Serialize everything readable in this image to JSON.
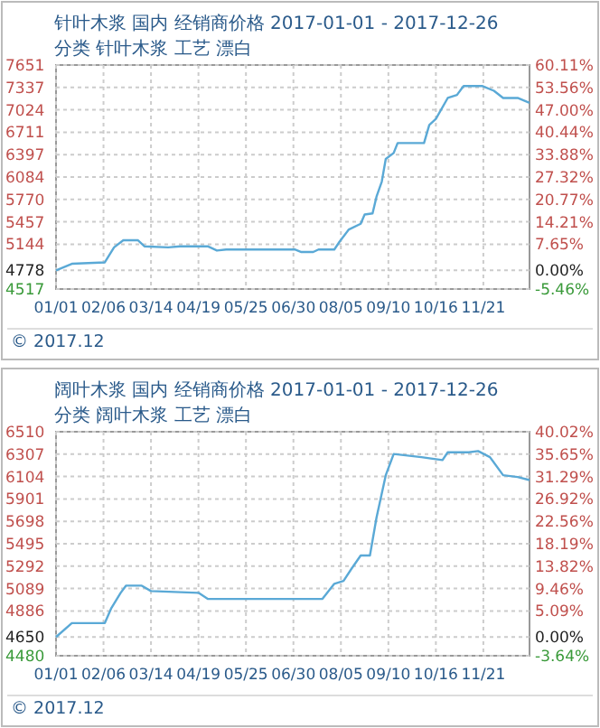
{
  "chart_data": [
    {
      "type": "line",
      "title": "针叶木浆 国内 经销商价格 2017-01-01 - 2017-12-26",
      "subtitle": "分类 针叶木浆 工艺 漂白",
      "annotations": [
        "© 2017.12"
      ],
      "series": [
        {
          "color": "#5aa9d6",
          "x": [
            "2017-01-01",
            "2017-01-13",
            "2017-02-07",
            "2017-02-14",
            "2017-02-21",
            "2017-03-04",
            "2017-03-09",
            "2017-03-27",
            "2017-04-05",
            "2017-04-26",
            "2017-05-03",
            "2017-05-10",
            "2017-07-01",
            "2017-07-06",
            "2017-07-15",
            "2017-07-19",
            "2017-07-31",
            "2017-08-04",
            "2017-08-11",
            "2017-08-20",
            "2017-08-23",
            "2017-08-29",
            "2017-09-01",
            "2017-09-05",
            "2017-09-08",
            "2017-09-14",
            "2017-09-17",
            "2017-10-07",
            "2017-10-11",
            "2017-10-16",
            "2017-10-25",
            "2017-11-01",
            "2017-11-06",
            "2017-11-20",
            "2017-11-29",
            "2017-12-06",
            "2017-12-17",
            "2017-12-26"
          ],
          "values": [
            4778,
            4870,
            4890,
            5100,
            5200,
            5200,
            5115,
            5100,
            5115,
            5115,
            5055,
            5070,
            5070,
            5035,
            5035,
            5070,
            5070,
            5180,
            5350,
            5430,
            5560,
            5575,
            5810,
            6020,
            6336,
            6420,
            6560,
            6560,
            6813,
            6897,
            7190,
            7232,
            7358,
            7358,
            7291,
            7190,
            7190,
            7123
          ]
        }
      ],
      "xlim": [
        "2017-01-01",
        "2017-12-26"
      ],
      "xticks": [
        {
          "value": "2017-01-01",
          "label": "01/01"
        },
        {
          "value": "2017-02-06",
          "label": "02/06"
        },
        {
          "value": "2017-03-14",
          "label": "03/14"
        },
        {
          "value": "2017-04-19",
          "label": "04/19"
        },
        {
          "value": "2017-05-25",
          "label": "05/25"
        },
        {
          "value": "2017-06-30",
          "label": "06/30"
        },
        {
          "value": "2017-08-05",
          "label": "08/05"
        },
        {
          "value": "2017-09-10",
          "label": "09/10"
        },
        {
          "value": "2017-10-16",
          "label": "10/16"
        },
        {
          "value": "2017-11-21",
          "label": "11/21"
        }
      ],
      "ylim": [
        4517,
        7651
      ],
      "yticks": [
        4517,
        4778,
        5144,
        5457,
        5770,
        6084,
        6397,
        6711,
        7024,
        7337,
        7651
      ],
      "y2lim": [
        -5.46,
        60.11
      ],
      "y2ticks": [
        {
          "value": -5.46,
          "label": "-5.46%"
        },
        {
          "value": 0,
          "label": "0.00%"
        },
        {
          "value": 7.65,
          "label": "7.65%"
        },
        {
          "value": 14.21,
          "label": "14.21%"
        },
        {
          "value": 20.77,
          "label": "20.77%"
        },
        {
          "value": 27.32,
          "label": "27.32%"
        },
        {
          "value": 33.88,
          "label": "33.88%"
        },
        {
          "value": 40.44,
          "label": "40.44%"
        },
        {
          "value": 47,
          "label": "47.00%"
        },
        {
          "value": 53.56,
          "label": "53.56%"
        },
        {
          "value": 60.11,
          "label": "60.11%"
        }
      ],
      "grid": true
    },
    {
      "type": "line",
      "title": "阔叶木浆 国内 经销商价格 2017-01-01 - 2017-12-26",
      "subtitle": "分类 阔叶木浆 工艺 漂白",
      "annotations": [
        "© 2017.12"
      ],
      "series": [
        {
          "color": "#5aa9d6",
          "x": [
            "2017-01-01",
            "2017-01-13",
            "2017-02-07",
            "2017-02-12",
            "2017-02-19",
            "2017-02-23",
            "2017-03-07",
            "2017-03-14",
            "2017-04-19",
            "2017-04-26",
            "2017-07-22",
            "2017-07-31",
            "2017-08-07",
            "2017-08-13",
            "2017-08-20",
            "2017-08-27",
            "2017-09-01",
            "2017-09-08",
            "2017-09-14",
            "2017-10-05",
            "2017-10-21",
            "2017-10-25",
            "2017-11-10",
            "2017-11-17",
            "2017-11-26",
            "2017-12-06",
            "2017-12-17",
            "2017-12-26"
          ],
          "values": [
            4650,
            4776,
            4776,
            4913,
            5050,
            5115,
            5115,
            5066,
            5050,
            4995,
            4995,
            5132,
            5159,
            5268,
            5389,
            5389,
            5733,
            6116,
            6308,
            6280,
            6253,
            6324,
            6324,
            6335,
            6280,
            6116,
            6100,
            6072
          ]
        }
      ],
      "xlim": [
        "2017-01-01",
        "2017-12-26"
      ],
      "xticks": [
        {
          "value": "2017-01-01",
          "label": "01/01"
        },
        {
          "value": "2017-02-06",
          "label": "02/06"
        },
        {
          "value": "2017-03-14",
          "label": "03/14"
        },
        {
          "value": "2017-04-19",
          "label": "04/19"
        },
        {
          "value": "2017-05-25",
          "label": "05/25"
        },
        {
          "value": "2017-06-30",
          "label": "06/30"
        },
        {
          "value": "2017-08-05",
          "label": "08/05"
        },
        {
          "value": "2017-09-10",
          "label": "09/10"
        },
        {
          "value": "2017-10-16",
          "label": "10/16"
        },
        {
          "value": "2017-11-21",
          "label": "11/21"
        }
      ],
      "ylim": [
        4480,
        6510
      ],
      "yticks": [
        4480,
        4650,
        4886,
        5089,
        5292,
        5495,
        5698,
        5901,
        6104,
        6307,
        6510
      ],
      "y2lim": [
        -3.64,
        40.02
      ],
      "y2ticks": [
        {
          "value": -3.64,
          "label": "-3.64%"
        },
        {
          "value": 0,
          "label": "0.00%"
        },
        {
          "value": 5.09,
          "label": "5.09%"
        },
        {
          "value": 9.46,
          "label": "9.46%"
        },
        {
          "value": 13.82,
          "label": "13.82%"
        },
        {
          "value": 18.19,
          "label": "18.19%"
        },
        {
          "value": 22.56,
          "label": "22.56%"
        },
        {
          "value": 26.92,
          "label": "26.92%"
        },
        {
          "value": 31.29,
          "label": "31.29%"
        },
        {
          "value": 35.65,
          "label": "35.65%"
        },
        {
          "value": 40.02,
          "label": "40.02%"
        }
      ],
      "grid": true
    }
  ]
}
